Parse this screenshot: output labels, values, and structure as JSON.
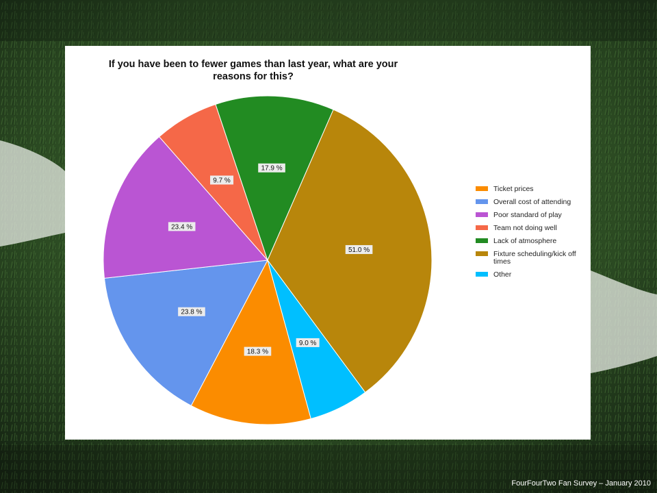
{
  "footer": {
    "text": "FourFourTwo Fan Survey – January 2010"
  },
  "chart_data": {
    "type": "pie",
    "title": "If you have been to fewer games than last year, what are your reasons for this?",
    "categories": [
      "Ticket prices",
      "Overall cost of attending",
      "Poor standard of play",
      "Team not doing well",
      "Lack of atmosphere",
      "Fixture scheduling/kick off times",
      "Other"
    ],
    "values": [
      18.3,
      23.8,
      23.4,
      9.7,
      17.9,
      51.0,
      9.0
    ],
    "data_labels": [
      "18.3 %",
      "23.8 %",
      "23.4 %",
      "9.7 %",
      "17.9 %",
      "51.0 %",
      "9.0 %"
    ],
    "colors": [
      "#fb8c00",
      "#6495ed",
      "#ba55d3",
      "#f56848",
      "#228b22",
      "#b8860b",
      "#00bfff"
    ],
    "legend": {
      "placement": "right",
      "entries": [
        "Ticket prices",
        "Overall cost of attending",
        "Poor standard of play",
        "Team not doing well",
        "Lack of atmosphere",
        "Fixture scheduling/kick off times",
        "Other"
      ]
    }
  }
}
